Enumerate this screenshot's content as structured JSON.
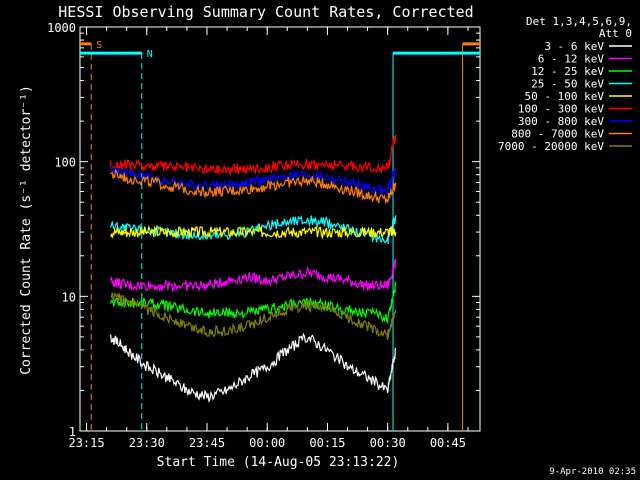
{
  "chart_data": {
    "type": "line",
    "title": "HESSI Observing Summary Count Rates, Corrected",
    "xlabel": "Start Time (14-Aug-05 23:13:22)",
    "ylabel": "Corrected Count Rate (s⁻¹ detector⁻¹)",
    "y_scale": "log",
    "ylim": [
      1,
      1000
    ],
    "xlim": [
      "23:13:22",
      "00:53:00"
    ],
    "x_ticks": [
      "23:15",
      "23:30",
      "23:45",
      "00:00",
      "00:15",
      "00:30",
      "00:45"
    ],
    "y_ticks": [
      "1",
      "10",
      "100",
      "1000"
    ],
    "grid": false,
    "legend_placement": "right",
    "legend_header": [
      "Det 1,3,4,5,6,9,",
      "Att 0"
    ],
    "timestamp": "9-Apr-2010 02:35",
    "flags": [
      {
        "label": "S",
        "start": "23:16:10",
        "end": "00:48:40",
        "color": "#ff8000",
        "y": 750
      },
      {
        "label": "N",
        "start": "23:28:45",
        "end": "00:31:20",
        "color": "#00ffff",
        "y": 640
      }
    ],
    "x": [
      "23:21",
      "23:25",
      "23:30",
      "23:35",
      "23:40",
      "23:45",
      "23:50",
      "23:55",
      "00:00",
      "00:05",
      "00:10",
      "00:15",
      "00:20",
      "00:25",
      "00:30",
      "00:32"
    ],
    "series": [
      {
        "name": "3 - 6 keV",
        "color": "#ffffff",
        "values": [
          5,
          4,
          3,
          2.5,
          2,
          1.8,
          2,
          2.5,
          3,
          4,
          5,
          4,
          3,
          2.5,
          2,
          4
        ]
      },
      {
        "name": "6 - 12 keV",
        "color": "#ff00ff",
        "values": [
          13,
          12,
          12,
          12,
          12,
          12,
          13,
          14,
          13,
          14,
          15,
          14,
          13,
          12,
          12,
          18
        ]
      },
      {
        "name": "12 - 25 keV",
        "color": "#00ff00",
        "values": [
          9,
          9,
          9,
          8.5,
          8,
          7.5,
          7.5,
          7.5,
          8,
          8.5,
          9,
          8.5,
          8,
          7.5,
          7,
          12
        ]
      },
      {
        "name": "25 - 50 keV",
        "color": "#00ffff",
        "values": [
          34,
          32,
          31,
          30,
          29,
          28,
          29,
          30,
          33,
          36,
          37,
          35,
          32,
          29,
          26,
          40
        ]
      },
      {
        "name": "50 - 100 keV",
        "color": "#ffff00",
        "values": [
          30,
          30,
          30,
          30,
          30,
          30,
          30,
          30,
          30,
          30,
          30,
          30,
          30,
          30,
          30,
          30
        ]
      },
      {
        "name": "100 - 300 keV",
        "color": "#ff0000",
        "values": [
          95,
          94,
          93,
          92,
          90,
          88,
          88,
          89,
          91,
          94,
          96,
          95,
          93,
          92,
          90,
          160
        ]
      },
      {
        "name": "300 - 800 keV",
        "color": "#0000ff",
        "values": [
          86,
          82,
          78,
          72,
          68,
          67,
          67,
          69,
          73,
          78,
          80,
          76,
          70,
          64,
          60,
          90
        ]
      },
      {
        "name": "800 - 7000 keV",
        "color": "#ff8000",
        "values": [
          80,
          76,
          72,
          66,
          62,
          60,
          60,
          62,
          66,
          70,
          72,
          68,
          62,
          56,
          52,
          70
        ]
      },
      {
        "name": "7000 - 20000 keV",
        "color": "#808000",
        "values": [
          10,
          9,
          8,
          7,
          6,
          5.5,
          5.5,
          6,
          7,
          8,
          8.5,
          8,
          7,
          6,
          5,
          8
        ]
      }
    ]
  }
}
